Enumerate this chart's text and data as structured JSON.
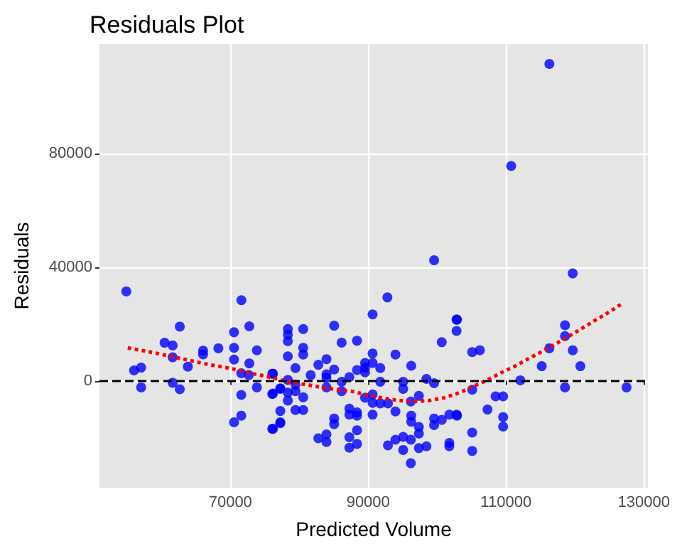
{
  "chart_data": {
    "type": "scatter",
    "title": "Residuals Plot",
    "xlabel": "Predicted Volume",
    "ylabel": "Residuals",
    "xlim": [
      51000,
      130600
    ],
    "ylim": [
      -37700,
      118700
    ],
    "xticks": [
      70000,
      90000,
      110000,
      130000
    ],
    "yticks": [
      0,
      40000,
      80000
    ],
    "grid": true,
    "ref_lines": [
      {
        "axis": "y",
        "value": 0,
        "color": "#000000",
        "line_style": "dashed"
      }
    ],
    "series": [
      {
        "color": "#0000ff",
        "marker": "circle",
        "x": [
          54900,
          71600,
          62660,
          72750,
          70530,
          60450,
          61620,
          70530,
          68260,
          66040,
          66040,
          73850,
          61620,
          70530,
          72750,
          63830,
          57050,
          56020,
          71580,
          72680,
          76080,
          61620,
          57050,
          62660,
          73850,
          71580,
          76080,
          77250,
          77250,
          71580,
          70530,
          77250,
          76080,
          99570,
          92790,
          90640,
          102830,
          102830,
          78340,
          80570,
          85060,
          78340,
          78340,
          86150,
          88380,
          100680,
          80570,
          80570,
          78340,
          83950,
          93960,
          90640,
          89550,
          90640,
          89550,
          89550,
          91760,
          82770,
          79450,
          85060,
          88380,
          96250,
          81660,
          83950,
          83950,
          83950,
          87270,
          76190,
          78340,
          86150,
          91760,
          95080,
          95080,
          98460,
          99570,
          79450,
          79450,
          77250,
          76190,
          78340,
          78340,
          80570,
          86150,
          89550,
          90640,
          90640,
          91760,
          92870,
          96190,
          97360,
          79450,
          80570,
          76190,
          77250,
          87270,
          87270,
          88380,
          88380,
          90640,
          85060,
          85060,
          93960,
          96250,
          96250,
          97360,
          97360,
          99570,
          99570,
          100680,
          101780,
          102830,
          82770,
          83950,
          83950,
          87270,
          88380,
          87270,
          88380,
          92870,
          93960,
          95080,
          95080,
          96190,
          97360,
          98460,
          96190,
          101780,
          101780,
          116300,
          110760,
          119690,
          102890,
          118570,
          118570,
          105100,
          106210,
          116300,
          119690,
          115190,
          120800,
          112090,
          105100,
          118570,
          127500,
          108500,
          109590,
          107320,
          109590,
          109590,
          102890,
          105100,
          105100
        ],
        "values": [
          31500,
          28400,
          19100,
          19200,
          17100,
          13400,
          12450,
          11600,
          11450,
          10600,
          9300,
          10750,
          8270,
          7470,
          6130,
          4980,
          4630,
          3640,
          2640,
          2000,
          2490,
          -700,
          -2340,
          -3000,
          -2340,
          -5000,
          -4680,
          -2840,
          -10660,
          -12300,
          -14640,
          -14940,
          -16930,
          42480,
          29380,
          23400,
          21560,
          17580,
          18230,
          18230,
          19420,
          16240,
          13950,
          13450,
          14090,
          13600,
          11600,
          9260,
          8620,
          7620,
          9260,
          9610,
          6270,
          6270,
          4630,
          2990,
          4480,
          5630,
          4480,
          3980,
          3780,
          5280,
          1990,
          2290,
          1000,
          -2340,
          1290,
          2490,
          300,
          -350,
          -350,
          -350,
          -2840,
          650,
          -850,
          -1340,
          -3690,
          -2690,
          -4480,
          -4180,
          -6970,
          -5830,
          -3690,
          -5980,
          -4830,
          -7820,
          -7970,
          -7970,
          -7320,
          -5330,
          -10310,
          -10310,
          -16930,
          -14640,
          -9810,
          -11950,
          -11160,
          -12300,
          -11950,
          -13300,
          -15290,
          -10810,
          -12300,
          -14440,
          -16280,
          -18620,
          -13300,
          -15640,
          -13790,
          -11950,
          -11950,
          -20270,
          -18920,
          -21610,
          -19920,
          -17430,
          -23610,
          -22260,
          -22760,
          -20770,
          -19770,
          -24400,
          -20770,
          -23750,
          -23110,
          -29080,
          -21910,
          -23110,
          111700,
          75700,
          37850,
          21560,
          19570,
          15740,
          10110,
          10760,
          11450,
          10760,
          5130,
          5130,
          150,
          -3190,
          -2340,
          -2340,
          -5480,
          -5480,
          -10160,
          -12800,
          -16130,
          -12300,
          -18280,
          -24750
        ]
      },
      {
        "type": "line",
        "color": "#ff0000",
        "line_style": "dotted",
        "marker": "none",
        "x": [
          55100,
          57330,
          59470,
          61680,
          63890,
          66040,
          68260,
          70470,
          72620,
          74770,
          76970,
          79120,
          81350,
          83560,
          85700,
          87910,
          90140,
          92290,
          94490,
          96700,
          98850,
          101070,
          103280,
          105230,
          107320,
          109270,
          111290,
          113240,
          115190,
          117200,
          119160,
          121110,
          123010,
          124960,
          126850
        ],
        "values": [
          11600,
          10610,
          9610,
          8470,
          7270,
          6130,
          5130,
          4130,
          2790,
          1790,
          500,
          -700,
          -1490,
          -2490,
          -3190,
          -3830,
          -5180,
          -6180,
          -6970,
          -7320,
          -6970,
          -5980,
          -4180,
          -2000,
          300,
          2790,
          5130,
          7770,
          10260,
          12950,
          15740,
          18580,
          21410,
          24200,
          27190
        ]
      }
    ]
  }
}
